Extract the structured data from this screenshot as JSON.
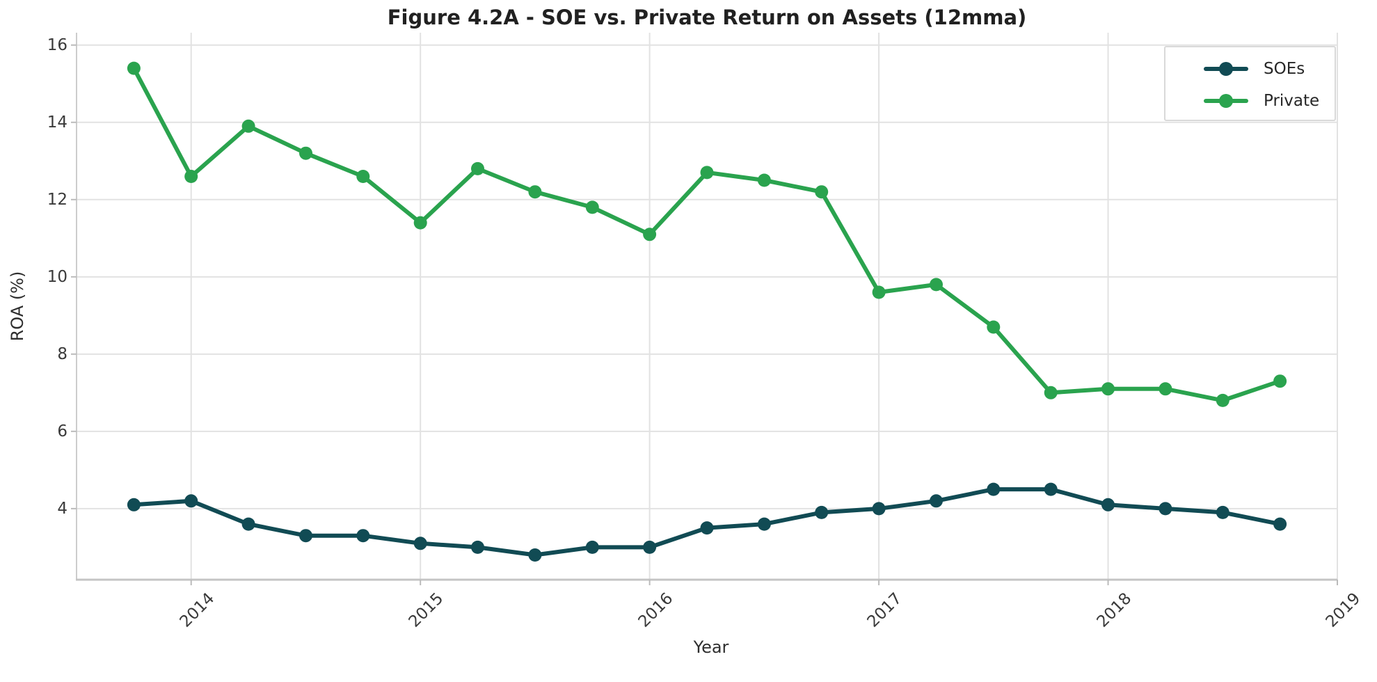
{
  "chart_data": {
    "type": "line",
    "title": "Figure 4.2A - SOE vs. Private Return on Assets (12mma)",
    "xlabel": "Year",
    "ylabel": "ROA (%)",
    "x": [
      2013.75,
      2014.0,
      2014.25,
      2014.5,
      2014.75,
      2015.0,
      2015.25,
      2015.5,
      2015.75,
      2016.0,
      2016.25,
      2016.5,
      2016.75,
      2017.0,
      2017.25,
      2017.5,
      2017.75,
      2018.0,
      2018.25,
      2018.5,
      2018.75
    ],
    "series": [
      {
        "name": "SOEs",
        "color": "#114b54",
        "values": [
          4.1,
          4.2,
          3.6,
          3.3,
          3.3,
          3.1,
          3.0,
          2.8,
          3.0,
          3.0,
          3.5,
          3.6,
          3.9,
          4.0,
          4.2,
          4.5,
          4.5,
          4.1,
          4.0,
          3.9,
          3.6
        ]
      },
      {
        "name": "Private",
        "color": "#2aa34e",
        "values": [
          15.4,
          12.6,
          13.9,
          13.2,
          12.6,
          11.4,
          12.8,
          12.2,
          11.8,
          11.1,
          12.7,
          12.5,
          12.2,
          9.6,
          9.8,
          8.7,
          7.0,
          7.1,
          7.1,
          6.8,
          7.3
        ]
      }
    ],
    "xticks": [
      2014,
      2015,
      2016,
      2017,
      2018,
      2019
    ],
    "yticks": [
      4,
      6,
      8,
      10,
      12,
      14,
      16
    ],
    "xlim": [
      2013.5,
      2019.0
    ],
    "ylim": [
      2.16,
      16.32
    ],
    "grid": true,
    "legend_position": "upper right"
  }
}
